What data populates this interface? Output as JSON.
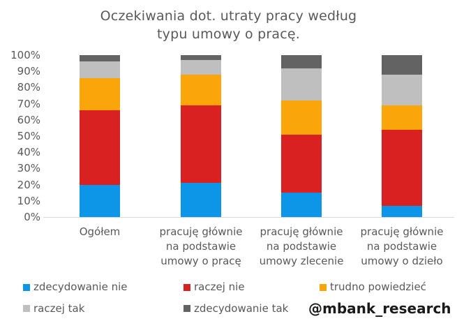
{
  "title": {
    "line1": "Oczekiwania dot. utraty pracy według",
    "line2": "typu umowy o pracę."
  },
  "watermark": "@mbank_research",
  "colors": {
    "zdecydowanie_nie": "#0d96e8",
    "raczej_nie": "#d92122",
    "trudno_powiedziec": "#faa50a",
    "raczej_tak": "#bfbfbf",
    "zdecydowanie_tak": "#636363",
    "axis_text": "#595959",
    "axis_line": "#d9d9d9",
    "background": "#ffffff"
  },
  "chart_data": {
    "type": "bar",
    "stacked": true,
    "percent_stacked": true,
    "title": "Oczekiwania dot. utraty pracy według typu umowy o pracę.",
    "grid": false,
    "legend_position": "bottom",
    "xlabel": "",
    "ylabel": "",
    "ylim": [
      0,
      100
    ],
    "y_axis": {
      "ticks": [
        "0%",
        "10%",
        "20%",
        "30%",
        "40%",
        "50%",
        "60%",
        "70%",
        "80%",
        "90%",
        "100%"
      ]
    },
    "categories": [
      {
        "label": "Ogółem",
        "lines": [
          "Ogółem"
        ]
      },
      {
        "label": "pracuję głównie na podstawie umowy o pracę",
        "lines": [
          "pracuję głównie",
          "na podstawie",
          "umowy o pracę"
        ]
      },
      {
        "label": "pracuję głównie na podstawie umowy zlecenie",
        "lines": [
          "pracuję głównie",
          "na podstawie",
          "umowy zlecenie"
        ]
      },
      {
        "label": "pracuję głównie na podstawie umowy o dzieło",
        "lines": [
          "pracuję głównie",
          "na podstawie",
          "umowy o dzieło"
        ]
      }
    ],
    "series": [
      {
        "name": "zdecydowanie nie",
        "color": "#0d96e8",
        "values": [
          20,
          21,
          15,
          7
        ]
      },
      {
        "name": "raczej nie",
        "color": "#d92122",
        "values": [
          46,
          48,
          36,
          47
        ]
      },
      {
        "name": "trudno powiedzieć",
        "color": "#faa50a",
        "values": [
          20,
          19,
          21,
          15
        ]
      },
      {
        "name": "raczej tak",
        "color": "#bfbfbf",
        "values": [
          10,
          9,
          20,
          19
        ]
      },
      {
        "name": "zdecydowanie tak",
        "color": "#636363",
        "values": [
          4,
          3,
          8,
          12
        ]
      }
    ]
  }
}
